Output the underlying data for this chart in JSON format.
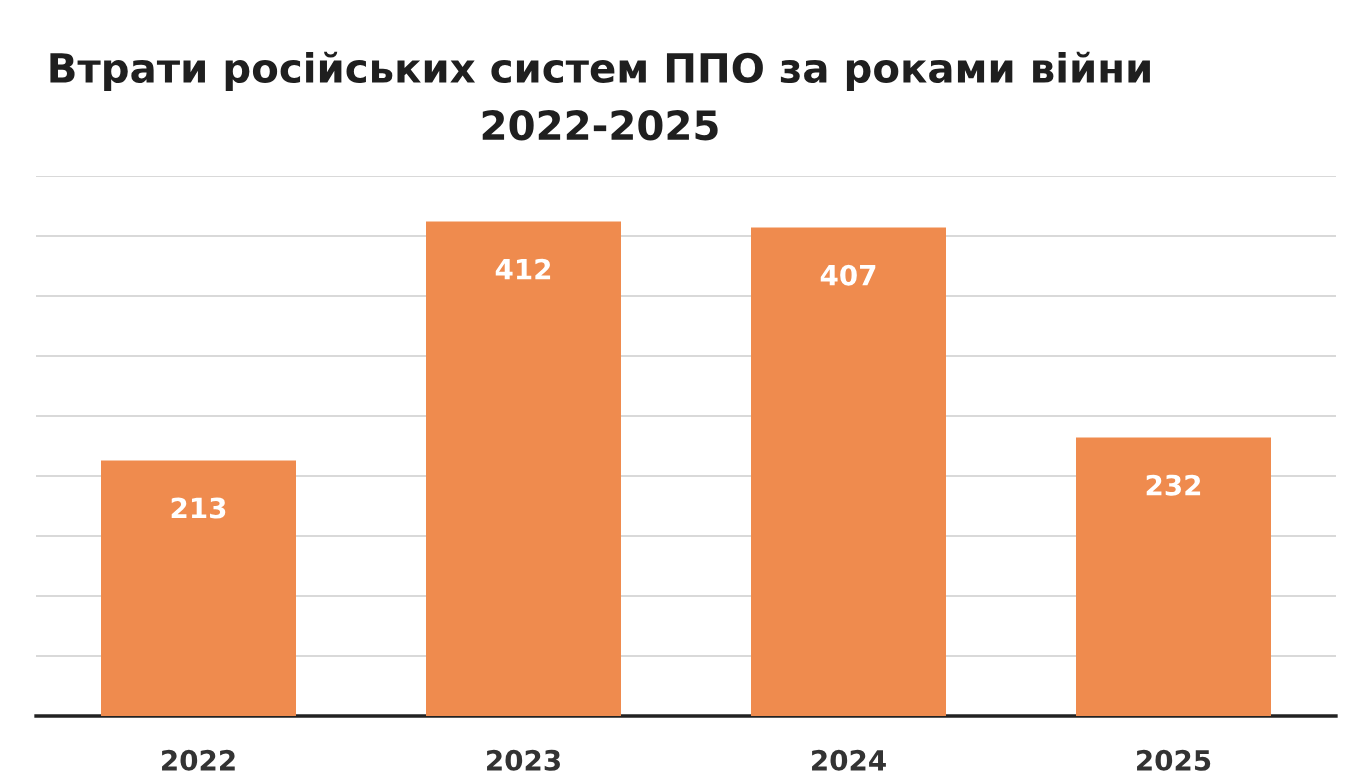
{
  "chart_data": {
    "type": "bar",
    "title": "Втрати російських систем ППО за роками війни\n2022-2025",
    "categories": [
      "2022",
      "2023",
      "2024",
      "2025"
    ],
    "values": [
      213,
      412,
      407,
      232
    ],
    "color": "#ef8b4e",
    "ylim": [
      0,
      450
    ],
    "yticks": [
      {
        "value": 0,
        "label": null
      },
      {
        "value": 50,
        "label": null
      },
      {
        "value": 100,
        "label": null
      },
      {
        "value": 150,
        "label": null
      },
      {
        "value": 200,
        "label": null
      },
      {
        "value": 250,
        "label": null
      },
      {
        "value": 300,
        "label": null
      },
      {
        "value": 350,
        "label": null
      },
      {
        "value": 400,
        "label": null
      },
      {
        "value": 450,
        "label": null
      }
    ],
    "grid": "y",
    "tick_labels": "x",
    "data_labels": true,
    "legend": false
  }
}
